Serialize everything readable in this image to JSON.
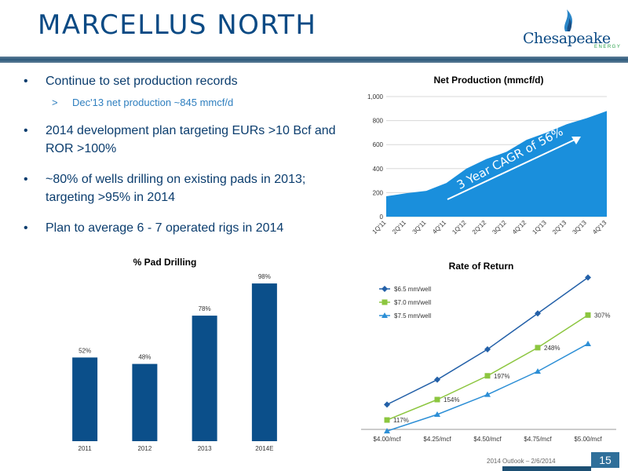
{
  "slide": {
    "title": "MARCELLUS NORTH",
    "page_number": "15",
    "footer": "2014 Outlook – 2/6/2014",
    "logo_text": "Chesapeake",
    "logo_sub": "ENERGY"
  },
  "bullets": [
    {
      "text": "Continue to set production records",
      "subs": [
        "Dec'13 net production ~845 mmcf/d"
      ]
    },
    {
      "text": "2014 development plan targeting EURs >10 Bcf and ROR >100%",
      "subs": []
    },
    {
      "text": "~80% of wells drilling on existing pads in 2013; targeting >95% in 2014",
      "subs": []
    },
    {
      "text": "Plan to average 6 - 7 operated rigs in 2014",
      "subs": []
    }
  ],
  "bullet_marks": {
    "bullet": "•",
    "sub": ">"
  },
  "colors": {
    "area_fill": "#1a8fdc",
    "bar": "#0b4f8a",
    "series_blue": "#2360a8",
    "series_green": "#8cc63f",
    "series_lightblue": "#2d8fd6",
    "title": "#0b4a84"
  },
  "chart_data": [
    {
      "type": "area",
      "title": "Net Production (mmcf/d)",
      "categories": [
        "1Q'11",
        "2Q'11",
        "3Q'11",
        "4Q'11",
        "1Q'12",
        "2Q'12",
        "3Q'12",
        "4Q'12",
        "1Q'13",
        "2Q'13",
        "3Q'13",
        "4Q'13"
      ],
      "values": [
        170,
        195,
        215,
        280,
        400,
        480,
        540,
        640,
        700,
        770,
        820,
        880
      ],
      "ylim": [
        0,
        1000
      ],
      "yticks": [
        0,
        200,
        400,
        600,
        800,
        1000
      ],
      "ytick_labels": [
        "0",
        "200",
        "400",
        "600",
        "800",
        "1,000"
      ],
      "annotation": "3 Year CAGR of 56%",
      "grid": true
    },
    {
      "type": "bar",
      "title": "% Pad Drilling",
      "categories": [
        "2011",
        "2012",
        "2013",
        "2014E"
      ],
      "values": [
        52,
        48,
        78,
        98
      ],
      "value_labels": [
        "52%",
        "48%",
        "78%",
        "98%"
      ],
      "ylim": [
        0,
        100
      ]
    },
    {
      "type": "line",
      "title": "Rate of Return",
      "categories": [
        "$4.00/mcf",
        "$4.25/mcf",
        "$4.50/mcf",
        "$4.75/mcf",
        "$5.00/mcf"
      ],
      "ylim": [
        100,
        380
      ],
      "legend_position": "top-left",
      "series": [
        {
          "name": "$6.5 mm/well",
          "values": [
            145,
            190,
            245,
            310,
            375
          ],
          "marker": "diamond"
        },
        {
          "name": "$7.0 mm/well",
          "values": [
            117,
            154,
            197,
            248,
            307
          ],
          "marker": "square",
          "labels": [
            "117%",
            "154%",
            "197%",
            "248%",
            "307%"
          ]
        },
        {
          "name": "$7.5 mm/well",
          "values": [
            97,
            127,
            163,
            205,
            255
          ],
          "marker": "triangle"
        }
      ]
    }
  ]
}
